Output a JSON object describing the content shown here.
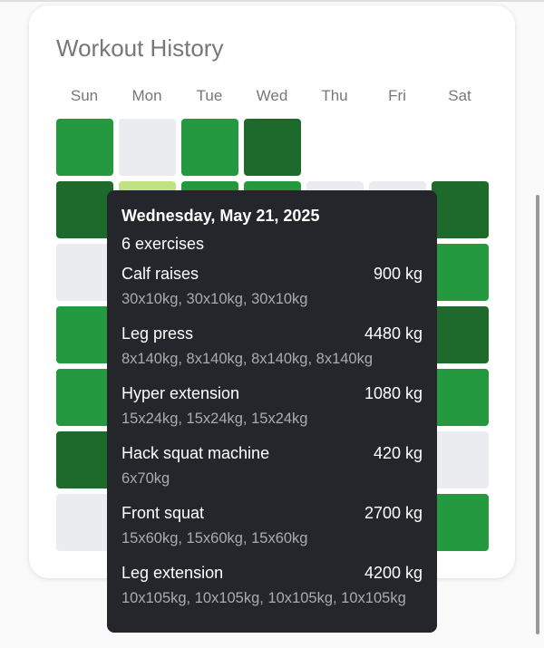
{
  "title": "Workout History",
  "weekdays": [
    "Sun",
    "Mon",
    "Tue",
    "Wed",
    "Thu",
    "Fri",
    "Sat"
  ],
  "calendar": {
    "rows": [
      [
        "#24993f",
        "#ebecf0",
        "#24993f",
        "#1e6a2c",
        null,
        null,
        null
      ],
      [
        "#1e6a2c",
        "#bfe383",
        "#24993f",
        "#24993f",
        "#ebecf0",
        "#ebecf0",
        "#1e6a2c"
      ],
      [
        "#ebecf0",
        "#ebecf0",
        "#ebecf0",
        "#ebecf0",
        "#ebecf0",
        "#ebecf0",
        "#24993f"
      ],
      [
        "#24993f",
        "#ebecf0",
        "#ebecf0",
        "#ebecf0",
        "#ebecf0",
        "#ebecf0",
        "#1e6a2c"
      ],
      [
        "#24993f",
        "#ebecf0",
        "#ebecf0",
        "#ebecf0",
        "#ebecf0",
        "#ebecf0",
        "#24993f"
      ],
      [
        "#1e6a2c",
        "#ebecf0",
        "#ebecf0",
        "#ebecf0",
        "#ebecf0",
        "#ebecf0",
        "#ebecf0"
      ],
      [
        "#ebecf0",
        "#ebecf0",
        "#ebecf0",
        "#ebecf0",
        "#ebecf0",
        "#ebecf0",
        "#24993f"
      ]
    ]
  },
  "tooltip": {
    "date": "Wednesday, May 21, 2025",
    "summary": "6 exercises",
    "exercises": [
      {
        "name": "Calf raises",
        "total": "900 kg",
        "sets": "30x10kg, 30x10kg, 30x10kg"
      },
      {
        "name": "Leg press",
        "total": "4480 kg",
        "sets": "8x140kg, 8x140kg, 8x140kg, 8x140kg"
      },
      {
        "name": "Hyper extension",
        "total": "1080 kg",
        "sets": "15x24kg, 15x24kg, 15x24kg"
      },
      {
        "name": "Hack squat machine",
        "total": "420 kg",
        "sets": "6x70kg"
      },
      {
        "name": "Front squat",
        "total": "2700 kg",
        "sets": "15x60kg, 15x60kg, 15x60kg"
      },
      {
        "name": "Leg extension",
        "total": "4200 kg",
        "sets": "10x105kg, 10x105kg, 10x105kg, 10x105kg"
      }
    ]
  }
}
